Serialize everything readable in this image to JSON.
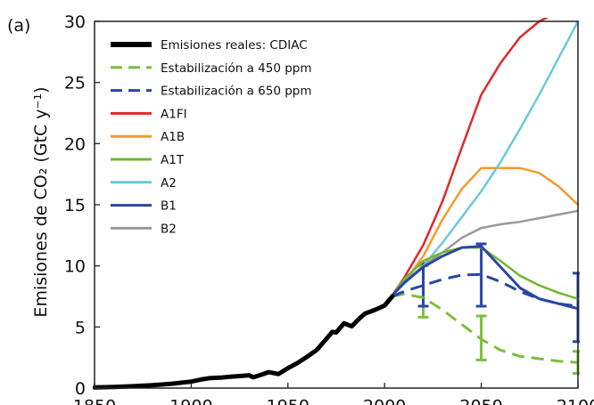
{
  "panel_label": "(a)",
  "chart_data": {
    "type": "line",
    "ylabel": "Emisiones de CO₂ (GtC y⁻¹)",
    "xlabel": "",
    "xlim": [
      1850,
      2100
    ],
    "ylim": [
      0,
      30
    ],
    "xticks": [
      1850,
      1900,
      1950,
      2000,
      2050,
      2100
    ],
    "yticks": [
      0,
      5,
      10,
      15,
      20,
      25,
      30
    ],
    "grid": false,
    "legend_position": "top-left",
    "series": [
      {
        "name": "Emisiones reales: CDIAC",
        "color": "#000000",
        "style": "solid",
        "width": 5,
        "points": [
          [
            1850,
            0.05
          ],
          [
            1860,
            0.09
          ],
          [
            1870,
            0.15
          ],
          [
            1880,
            0.24
          ],
          [
            1890,
            0.36
          ],
          [
            1900,
            0.53
          ],
          [
            1905,
            0.7
          ],
          [
            1910,
            0.82
          ],
          [
            1915,
            0.85
          ],
          [
            1920,
            0.93
          ],
          [
            1925,
            0.98
          ],
          [
            1930,
            1.05
          ],
          [
            1932,
            0.88
          ],
          [
            1935,
            1.03
          ],
          [
            1940,
            1.3
          ],
          [
            1945,
            1.15
          ],
          [
            1950,
            1.63
          ],
          [
            1955,
            2.05
          ],
          [
            1960,
            2.57
          ],
          [
            1965,
            3.13
          ],
          [
            1970,
            4.05
          ],
          [
            1973,
            4.6
          ],
          [
            1975,
            4.55
          ],
          [
            1979,
            5.3
          ],
          [
            1983,
            5.05
          ],
          [
            1987,
            5.7
          ],
          [
            1990,
            6.1
          ],
          [
            1995,
            6.4
          ],
          [
            2000,
            6.75
          ],
          [
            2004,
            7.5
          ]
        ]
      },
      {
        "name": "Estabilización a 450 ppm",
        "color": "#7abf3a",
        "style": "dashed",
        "width": 3,
        "points": [
          [
            2004,
            7.5
          ],
          [
            2010,
            7.7
          ],
          [
            2020,
            7.4
          ],
          [
            2030,
            6.4
          ],
          [
            2040,
            5.2
          ],
          [
            2050,
            4.0
          ],
          [
            2060,
            3.1
          ],
          [
            2070,
            2.6
          ],
          [
            2080,
            2.4
          ],
          [
            2090,
            2.2
          ],
          [
            2100,
            2.1
          ]
        ]
      },
      {
        "name": "Estabilización a 650 ppm",
        "color": "#2b46a5",
        "style": "dashed",
        "width": 3,
        "points": [
          [
            2004,
            7.5
          ],
          [
            2010,
            7.9
          ],
          [
            2020,
            8.4
          ],
          [
            2030,
            8.9
          ],
          [
            2040,
            9.25
          ],
          [
            2050,
            9.3
          ],
          [
            2060,
            8.7
          ],
          [
            2070,
            7.9
          ],
          [
            2080,
            7.3
          ],
          [
            2090,
            6.9
          ],
          [
            2100,
            6.7
          ]
        ]
      },
      {
        "name": "A1FI",
        "color": "#e0282a",
        "style": "solid",
        "width": 2.5,
        "points": [
          [
            2004,
            7.6
          ],
          [
            2010,
            9.0
          ],
          [
            2020,
            11.7
          ],
          [
            2030,
            15.3
          ],
          [
            2040,
            19.7
          ],
          [
            2050,
            24.0
          ],
          [
            2060,
            26.6
          ],
          [
            2070,
            28.7
          ],
          [
            2080,
            30.0
          ],
          [
            2085,
            30.4
          ]
        ]
      },
      {
        "name": "A1B",
        "color": "#f59a2c",
        "style": "solid",
        "width": 2.5,
        "points": [
          [
            2004,
            7.6
          ],
          [
            2010,
            8.6
          ],
          [
            2020,
            10.8
          ],
          [
            2030,
            13.8
          ],
          [
            2040,
            16.3
          ],
          [
            2050,
            18.0
          ],
          [
            2060,
            18.0
          ],
          [
            2070,
            18.0
          ],
          [
            2080,
            17.6
          ],
          [
            2090,
            16.5
          ],
          [
            2100,
            15.0
          ]
        ]
      },
      {
        "name": "A1T",
        "color": "#73b631",
        "style": "solid",
        "width": 2.5,
        "points": [
          [
            2004,
            7.6
          ],
          [
            2010,
            8.9
          ],
          [
            2020,
            10.4
          ],
          [
            2030,
            11.1
          ],
          [
            2040,
            11.5
          ],
          [
            2050,
            11.5
          ],
          [
            2060,
            10.4
          ],
          [
            2070,
            9.2
          ],
          [
            2080,
            8.4
          ],
          [
            2090,
            7.8
          ],
          [
            2100,
            7.3
          ]
        ]
      },
      {
        "name": "A2",
        "color": "#6cc8de",
        "style": "solid",
        "width": 2.5,
        "points": [
          [
            2004,
            7.6
          ],
          [
            2010,
            8.5
          ],
          [
            2020,
            10.0
          ],
          [
            2030,
            11.9
          ],
          [
            2040,
            14.0
          ],
          [
            2050,
            16.1
          ],
          [
            2060,
            18.5
          ],
          [
            2070,
            21.2
          ],
          [
            2080,
            24.0
          ],
          [
            2090,
            27.0
          ],
          [
            2100,
            30.0
          ]
        ]
      },
      {
        "name": "B1",
        "color": "#2b46a5",
        "style": "solid",
        "width": 3,
        "points": [
          [
            2004,
            7.6
          ],
          [
            2010,
            8.6
          ],
          [
            2020,
            9.9
          ],
          [
            2030,
            10.8
          ],
          [
            2040,
            11.5
          ],
          [
            2050,
            11.6
          ],
          [
            2060,
            9.9
          ],
          [
            2070,
            8.2
          ],
          [
            2080,
            7.3
          ],
          [
            2090,
            6.9
          ],
          [
            2100,
            6.5
          ]
        ]
      },
      {
        "name": "B2",
        "color": "#9a9a9a",
        "style": "solid",
        "width": 2.5,
        "points": [
          [
            2004,
            7.6
          ],
          [
            2010,
            8.7
          ],
          [
            2020,
            10.0
          ],
          [
            2030,
            11.1
          ],
          [
            2040,
            12.3
          ],
          [
            2050,
            13.1
          ],
          [
            2060,
            13.4
          ],
          [
            2070,
            13.6
          ],
          [
            2080,
            13.9
          ],
          [
            2090,
            14.2
          ],
          [
            2100,
            14.5
          ]
        ]
      }
    ],
    "error_bars": [
      {
        "color": "#7abf3a",
        "x": 2020,
        "low": 5.8,
        "high": 10.0
      },
      {
        "color": "#7abf3a",
        "x": 2050,
        "low": 2.3,
        "high": 5.9
      },
      {
        "color": "#7abf3a",
        "x": 2100,
        "low": 1.2,
        "high": 3.0
      },
      {
        "color": "#2b46a5",
        "x": 2020,
        "low": 6.7,
        "high": 10.2
      },
      {
        "color": "#2b46a5",
        "x": 2050,
        "low": 6.7,
        "high": 11.8
      },
      {
        "color": "#2b46a5",
        "x": 2100,
        "low": 3.8,
        "high": 9.4
      }
    ]
  }
}
